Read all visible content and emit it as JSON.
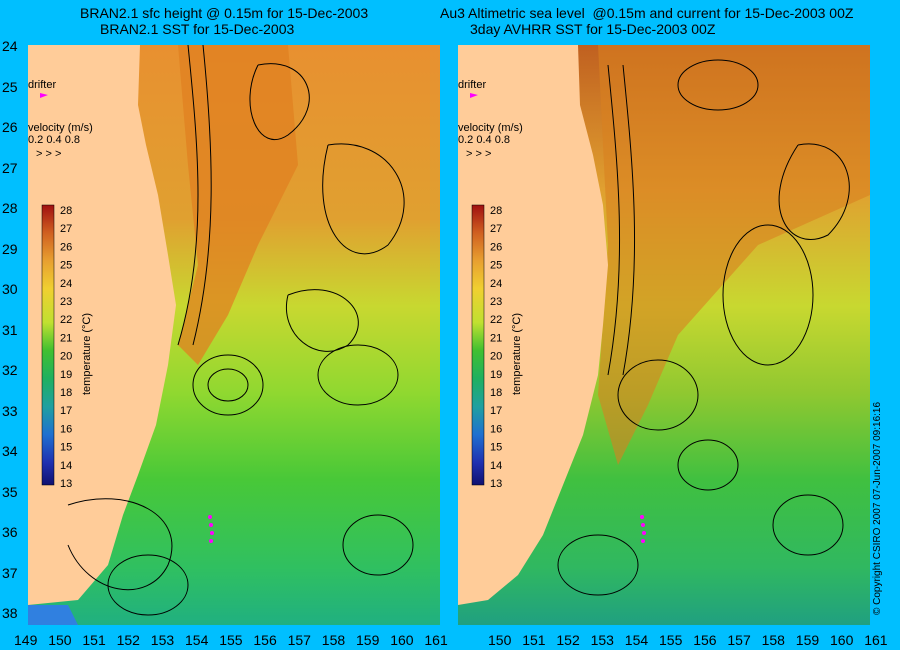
{
  "left_panel": {
    "title_line1": "BRAN2.1 sfc height @ 0.15m for 15-Dec-2003",
    "title_line2": "BRAN2.1 SST for 15-Dec-2003",
    "drifter_label": "drifter",
    "velocity_label": "velocity (m/s)",
    "velocity_scale": "0.2 0.4 0.8",
    "colorbar_label": "temperature (°C)"
  },
  "right_panel": {
    "title_line1": "Au3 Altimetric sea level  @0.15m and current for 15-Dec-2003 00Z",
    "title_line2": "3day AVHRR SST for 15-Dec-2003 00Z",
    "drifter_label": "drifter",
    "velocity_label": "velocity (m/s)",
    "velocity_scale": "0.2 0.4 0.8",
    "colorbar_label": "temperature (°C)"
  },
  "lat_ticks": [
    "24",
    "25",
    "26",
    "27",
    "28",
    "29",
    "30",
    "31",
    "32",
    "33",
    "34",
    "35",
    "36",
    "37",
    "38"
  ],
  "lon_ticks_left": [
    "149",
    "150",
    "151",
    "152",
    "153",
    "154",
    "155",
    "156",
    "157",
    "158",
    "159",
    "160",
    "161"
  ],
  "lon_ticks_right": [
    "150",
    "151",
    "152",
    "153",
    "154",
    "155",
    "156",
    "157",
    "158",
    "159",
    "160",
    "161"
  ],
  "colorbar_ticks": [
    "28",
    "27",
    "26",
    "25",
    "24",
    "23",
    "22",
    "21",
    "20",
    "19",
    "18",
    "17",
    "16",
    "15",
    "14",
    "13"
  ],
  "copyright": "© Copyright CSIRO 2007   07-Jun-2007 09:16:16",
  "colors": {
    "background": "#00bfff",
    "land": "#ffcc99",
    "warm": "#e08020",
    "mid": "#c8d830",
    "cool": "#40c030",
    "drifter": "#ff00ff"
  }
}
